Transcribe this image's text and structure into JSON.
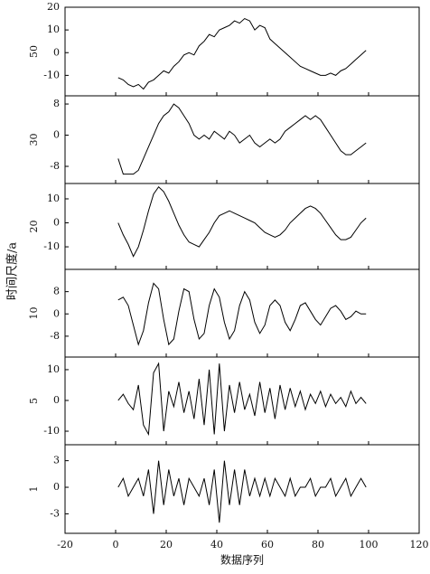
{
  "ylabel": "时间尺度/a",
  "chart_data": [
    {
      "type": "line",
      "ylabel": "50",
      "color": "#000000",
      "xlim": [
        -20,
        120
      ],
      "ylim": [
        -19,
        20
      ],
      "yticks": [
        20,
        10,
        0,
        -10
      ],
      "x": [
        1,
        3,
        5,
        7,
        9,
        11,
        13,
        15,
        17,
        19,
        21,
        23,
        25,
        27,
        29,
        31,
        33,
        35,
        37,
        39,
        41,
        43,
        45,
        47,
        49,
        51,
        53,
        55,
        57,
        59,
        61,
        63,
        65,
        67,
        69,
        71,
        73,
        75,
        77,
        79,
        81,
        83,
        85,
        87,
        89,
        91,
        93,
        95,
        97,
        99
      ],
      "values": [
        -11,
        -12,
        -14,
        -15,
        -14,
        -16,
        -13,
        -12,
        -10,
        -8,
        -9,
        -6,
        -4,
        -1,
        0,
        -1,
        3,
        5,
        8,
        7,
        10,
        11,
        12,
        14,
        13,
        15,
        14,
        10,
        12,
        11,
        6,
        4,
        2,
        0,
        -2,
        -4,
        -6,
        -7,
        -8,
        -9,
        -10,
        -10,
        -9,
        -10,
        -8,
        -7,
        -5,
        -3,
        -1,
        1
      ]
    },
    {
      "type": "line",
      "ylabel": "30",
      "color": "#000000",
      "xlim": [
        -20,
        120
      ],
      "ylim": [
        -12.4,
        10.1
      ],
      "yticks": [
        8,
        0,
        -8
      ],
      "x": [
        1,
        3,
        5,
        7,
        9,
        11,
        13,
        15,
        17,
        19,
        21,
        23,
        25,
        27,
        29,
        31,
        33,
        35,
        37,
        39,
        41,
        43,
        45,
        47,
        49,
        51,
        53,
        55,
        57,
        59,
        61,
        63,
        65,
        67,
        69,
        71,
        73,
        75,
        77,
        79,
        81,
        83,
        85,
        87,
        89,
        91,
        93,
        95,
        97,
        99
      ],
      "values": [
        -6,
        -10,
        -10,
        -10,
        -9,
        -6,
        -3,
        0,
        3,
        5,
        6,
        8,
        7,
        5,
        3,
        0,
        -1,
        0,
        -1,
        1,
        0,
        -1,
        1,
        0,
        -2,
        -1,
        0,
        -2,
        -3,
        -2,
        -1,
        -2,
        -1,
        1,
        2,
        3,
        4,
        5,
        4,
        5,
        4,
        2,
        0,
        -2,
        -4,
        -5,
        -5,
        -4,
        -3,
        -2
      ]
    },
    {
      "type": "line",
      "ylabel": "20",
      "color": "#000000",
      "xlim": [
        -20,
        120
      ],
      "ylim": [
        -19.4,
        16.4
      ],
      "yticks": [
        10,
        0,
        -10
      ],
      "x": [
        1,
        3,
        5,
        7,
        9,
        11,
        13,
        15,
        17,
        19,
        21,
        23,
        25,
        27,
        29,
        31,
        33,
        35,
        37,
        39,
        41,
        43,
        45,
        47,
        49,
        51,
        53,
        55,
        57,
        59,
        61,
        63,
        65,
        67,
        69,
        71,
        73,
        75,
        77,
        79,
        81,
        83,
        85,
        87,
        89,
        91,
        93,
        95,
        97,
        99
      ],
      "values": [
        0,
        -5,
        -9,
        -14,
        -10,
        -3,
        5,
        12,
        15,
        13,
        9,
        4,
        -1,
        -5,
        -8,
        -9,
        -10,
        -7,
        -4,
        0,
        3,
        4,
        5,
        4,
        3,
        2,
        1,
        0,
        -2,
        -4,
        -5,
        -6,
        -5,
        -3,
        0,
        2,
        4,
        6,
        7,
        6,
        4,
        1,
        -2,
        -5,
        -7,
        -7,
        -6,
        -3,
        0,
        2
      ]
    },
    {
      "type": "line",
      "ylabel": "10",
      "color": "#000000",
      "xlim": [
        -20,
        120
      ],
      "ylim": [
        -15.5,
        16
      ],
      "yticks": [
        8,
        0,
        -8
      ],
      "x": [
        1,
        3,
        5,
        7,
        9,
        11,
        13,
        15,
        17,
        19,
        21,
        23,
        25,
        27,
        29,
        31,
        33,
        35,
        37,
        39,
        41,
        43,
        45,
        47,
        49,
        51,
        53,
        55,
        57,
        59,
        61,
        63,
        65,
        67,
        69,
        71,
        73,
        75,
        77,
        79,
        81,
        83,
        85,
        87,
        89,
        91,
        93,
        95,
        97,
        99
      ],
      "values": [
        5,
        6,
        3,
        -4,
        -11,
        -6,
        4,
        11,
        9,
        -2,
        -11,
        -9,
        1,
        9,
        8,
        -2,
        -9,
        -7,
        3,
        9,
        6,
        -3,
        -9,
        -6,
        3,
        8,
        5,
        -3,
        -7,
        -4,
        3,
        5,
        3,
        -3,
        -6,
        -2,
        3,
        4,
        1,
        -2,
        -4,
        -1,
        2,
        3,
        1,
        -2,
        -1,
        1,
        0,
        0
      ]
    },
    {
      "type": "line",
      "ylabel": "5",
      "color": "#000000",
      "xlim": [
        -20,
        120
      ],
      "ylim": [
        -14.4,
        14.1
      ],
      "yticks": [
        10,
        0,
        -10
      ],
      "x": [
        1,
        3,
        5,
        7,
        9,
        11,
        13,
        15,
        17,
        19,
        21,
        23,
        25,
        27,
        29,
        31,
        33,
        35,
        37,
        39,
        41,
        43,
        45,
        47,
        49,
        51,
        53,
        55,
        57,
        59,
        61,
        63,
        65,
        67,
        69,
        71,
        73,
        75,
        77,
        79,
        81,
        83,
        85,
        87,
        89,
        91,
        93,
        95,
        97,
        99
      ],
      "values": [
        0,
        2,
        -1,
        -3,
        5,
        -8,
        -11,
        9,
        12,
        -10,
        3,
        -2,
        6,
        -4,
        3,
        -6,
        7,
        -8,
        10,
        -11,
        12,
        -10,
        5,
        -4,
        6,
        -3,
        2,
        -5,
        6,
        -4,
        4,
        -6,
        5,
        -3,
        4,
        -2,
        3,
        -3,
        2,
        -1,
        3,
        -2,
        2,
        -1,
        1,
        -2,
        3,
        -1,
        1,
        -1
      ]
    },
    {
      "type": "line",
      "ylabel": "1",
      "color": "#000000",
      "xlim": [
        -20,
        120
      ],
      "ylim": [
        -5.2,
        4.8
      ],
      "yticks": [
        3,
        0,
        -3
      ],
      "xticks": [
        -20,
        0,
        20,
        40,
        60,
        80,
        100,
        120
      ],
      "xlabel": "数据序列",
      "x": [
        1,
        3,
        5,
        7,
        9,
        11,
        13,
        15,
        17,
        19,
        21,
        23,
        25,
        27,
        29,
        31,
        33,
        35,
        37,
        39,
        41,
        43,
        45,
        47,
        49,
        51,
        53,
        55,
        57,
        59,
        61,
        63,
        65,
        67,
        69,
        71,
        73,
        75,
        77,
        79,
        81,
        83,
        85,
        87,
        89,
        91,
        93,
        95,
        97,
        99
      ],
      "values": [
        0,
        1,
        -1,
        0,
        1,
        -1,
        2,
        -3,
        3,
        -2,
        2,
        -1,
        1,
        -2,
        1,
        0,
        -1,
        1,
        -2,
        2,
        -4,
        3,
        -2,
        2,
        -2,
        2,
        -1,
        1,
        -1,
        1,
        -1,
        1,
        0,
        -1,
        1,
        -1,
        0,
        0,
        1,
        -1,
        0,
        0,
        1,
        -1,
        0,
        1,
        -1,
        0,
        1,
        0
      ]
    }
  ]
}
